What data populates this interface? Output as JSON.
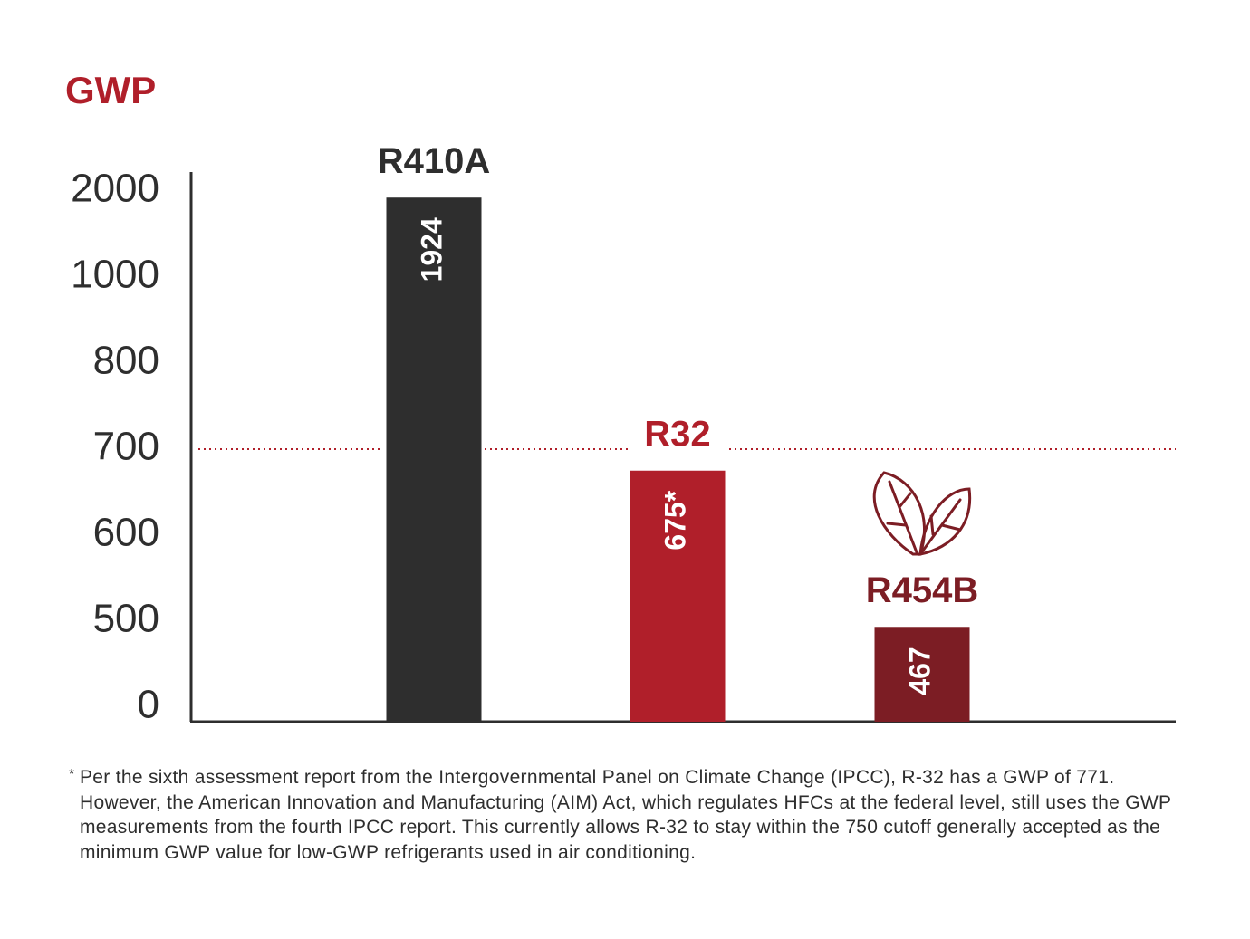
{
  "chart_data": {
    "type": "bar",
    "y_label": "GWP",
    "categories": [
      "R410A",
      "R32",
      "R454B"
    ],
    "values": [
      1924,
      675,
      467
    ],
    "value_labels": [
      "1924",
      "675*",
      "467"
    ],
    "colors": [
      "#2e2e2e",
      "#b01f2a",
      "#7c1d24"
    ],
    "yticks": [
      0,
      500,
      600,
      700,
      800,
      1000,
      2000
    ],
    "reference_line": {
      "value": 700,
      "color": "#b01f2a"
    },
    "footnote": {
      "marker": "*",
      "text": "Per the sixth assessment report from the Intergovernmental Panel on Climate Change (IPCC), R-32 has a GWP of 771. However, the American Innovation and Manufacturing (AIM) Act, which regulates HFCs at the federal level, still uses the GWP measurements from the fourth IPCC report. This currently allows R-32 to stay within the 750 cutoff generally accepted as the minimum GWP value for low-GWP refrigerants used in air conditioning."
    }
  }
}
